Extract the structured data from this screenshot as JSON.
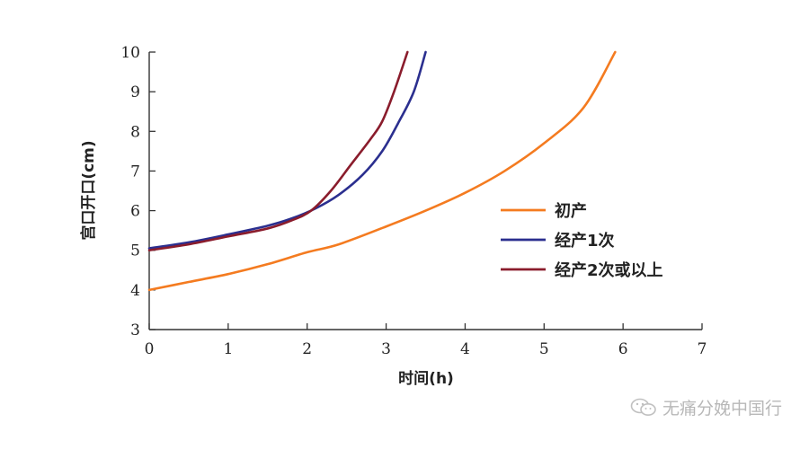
{
  "chart_data": {
    "type": "line",
    "xlabel": "时间(h)",
    "ylabel": "宫口开口(cm)",
    "xlim": [
      0,
      7
    ],
    "ylim": [
      3,
      10
    ],
    "xticks": [
      "0",
      "1",
      "2",
      "3",
      "4",
      "5",
      "6",
      "7"
    ],
    "yticks": [
      "3",
      "4",
      "5",
      "6",
      "7",
      "8",
      "9",
      "10"
    ],
    "grid": false,
    "legend_position": "right",
    "series": [
      {
        "name": "初产",
        "color": "#f47b20",
        "points": [
          [
            0,
            4.0
          ],
          [
            0.5,
            4.2
          ],
          [
            1.0,
            4.4
          ],
          [
            1.5,
            4.65
          ],
          [
            2.0,
            4.95
          ],
          [
            2.4,
            5.15
          ],
          [
            3.0,
            5.6
          ],
          [
            3.5,
            6.0
          ],
          [
            4.0,
            6.45
          ],
          [
            4.5,
            7.0
          ],
          [
            5.0,
            7.7
          ],
          [
            5.5,
            8.6
          ],
          [
            5.9,
            10.0
          ]
        ]
      },
      {
        "name": "经产1次",
        "color": "#2b2f8f",
        "points": [
          [
            0,
            5.05
          ],
          [
            0.5,
            5.2
          ],
          [
            1.0,
            5.4
          ],
          [
            1.5,
            5.62
          ],
          [
            1.8,
            5.8
          ],
          [
            2.1,
            6.05
          ],
          [
            2.4,
            6.4
          ],
          [
            2.7,
            6.9
          ],
          [
            2.95,
            7.5
          ],
          [
            3.15,
            8.2
          ],
          [
            3.35,
            9.0
          ],
          [
            3.5,
            10.0
          ]
        ]
      },
      {
        "name": "经产2次或以上",
        "color": "#8a1c2c",
        "points": [
          [
            0,
            5.0
          ],
          [
            0.5,
            5.15
          ],
          [
            1.0,
            5.35
          ],
          [
            1.5,
            5.55
          ],
          [
            1.8,
            5.75
          ],
          [
            2.05,
            6.0
          ],
          [
            2.3,
            6.5
          ],
          [
            2.55,
            7.15
          ],
          [
            2.8,
            7.8
          ],
          [
            2.95,
            8.25
          ],
          [
            3.1,
            9.0
          ],
          [
            3.27,
            10.0
          ]
        ]
      }
    ]
  },
  "watermark": {
    "text": "无痛分娩中国行",
    "icon": "wechat-icon",
    "color": "#b8b8b8"
  }
}
